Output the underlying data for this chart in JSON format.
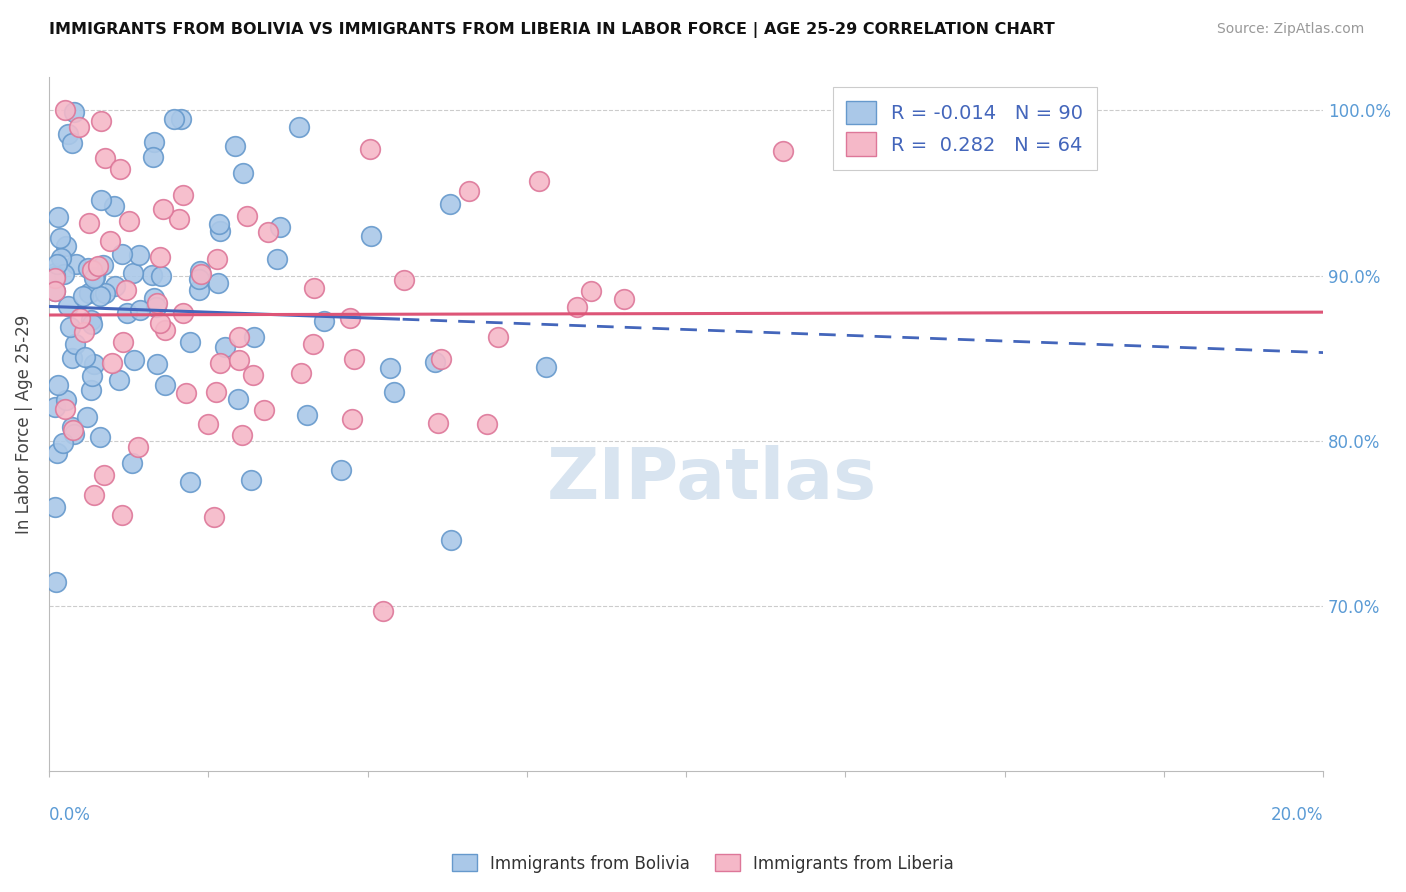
{
  "title": "IMMIGRANTS FROM BOLIVIA VS IMMIGRANTS FROM LIBERIA IN LABOR FORCE | AGE 25-29 CORRELATION CHART",
  "source": "Source: ZipAtlas.com",
  "ylabel": "In Labor Force | Age 25-29",
  "xlim": [
    0.0,
    0.2
  ],
  "ylim": [
    0.6,
    1.02
  ],
  "bolivia_r": "-0.014",
  "bolivia_n": "90",
  "liberia_r": "0.282",
  "liberia_n": "64",
  "bolivia_color": "#aac8e8",
  "liberia_color": "#f5b8c8",
  "bolivia_edge": "#6699cc",
  "liberia_edge": "#dd7799",
  "bolivia_trend_color": "#4466bb",
  "liberia_trend_color": "#dd5577",
  "grid_color": "#cccccc",
  "watermark_color": "#d8e4f0",
  "right_label_color": "#5b9bd5",
  "yticks": [
    0.7,
    0.8,
    0.9,
    1.0
  ],
  "ytick_labels": [
    "70.0%",
    "80.0%",
    "90.0%",
    "100.0%"
  ]
}
